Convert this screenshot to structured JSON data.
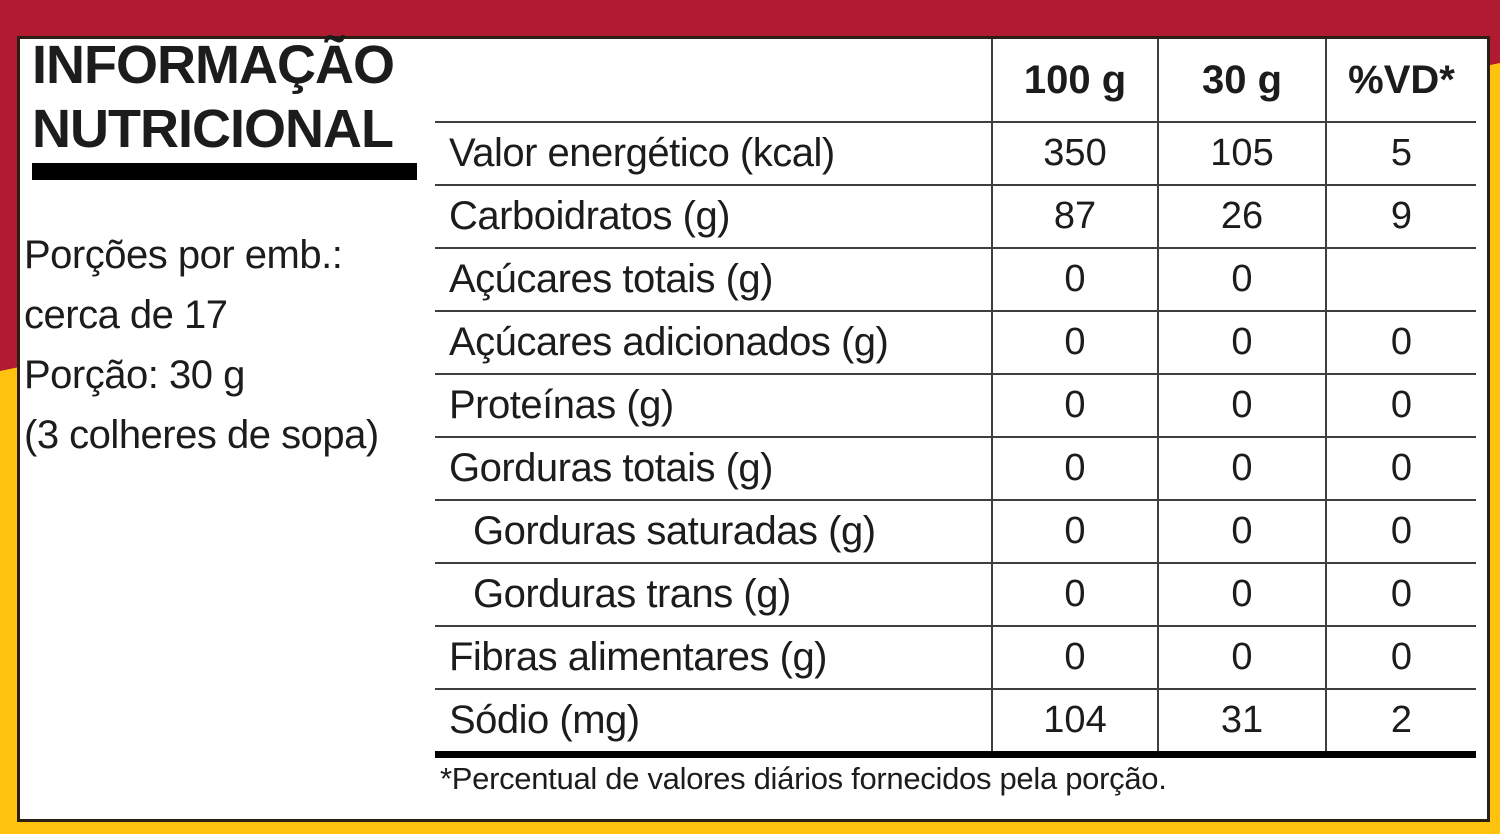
{
  "label": {
    "title_line1": "INFORMAÇÃO",
    "title_line2": "NUTRICIONAL",
    "serving": {
      "line1": "Porções por emb.:",
      "line2": "cerca de 17",
      "line3": "Porção: 30 g",
      "line4": "(3 colheres de sopa)"
    }
  },
  "table": {
    "headers": [
      "100 g",
      "30 g",
      "%VD*"
    ],
    "rows": [
      {
        "label": "Valor energético (kcal)",
        "per100g": "350",
        "per30g": "105",
        "vd": "5"
      },
      {
        "label": "Carboidratos (g)",
        "per100g": "87",
        "per30g": "26",
        "vd": "9"
      },
      {
        "label": "Açúcares totais (g)",
        "per100g": "0",
        "per30g": "0",
        "vd": ""
      },
      {
        "label": "Açúcares adicionados (g)",
        "per100g": "0",
        "per30g": "0",
        "vd": "0"
      },
      {
        "label": "Proteínas (g)",
        "per100g": "0",
        "per30g": "0",
        "vd": "0"
      },
      {
        "label": "Gorduras totais (g)",
        "per100g": "0",
        "per30g": "0",
        "vd": "0"
      },
      {
        "label": "Gorduras saturadas (g)",
        "per100g": "0",
        "per30g": "0",
        "vd": "0"
      },
      {
        "label": "Gorduras trans (g)",
        "per100g": "0",
        "per30g": "0",
        "vd": "0"
      },
      {
        "label": "Fibras alimentares (g)",
        "per100g": "0",
        "per30g": "0",
        "vd": "0"
      },
      {
        "label": "Sódio (mg)",
        "per100g": "104",
        "per30g": "31",
        "vd": "2"
      }
    ],
    "footnote": "*Percentual de valores diários fornecidos pela porção."
  },
  "colors": {
    "background_red": "#b01b31",
    "background_yellow": "#ffc20e",
    "panel_white": "#ffffff",
    "panel_border": "#2b1e15",
    "rule_thin": "#3f3f3f",
    "rule_thick": "#000000",
    "text": "#1c1c1c"
  }
}
